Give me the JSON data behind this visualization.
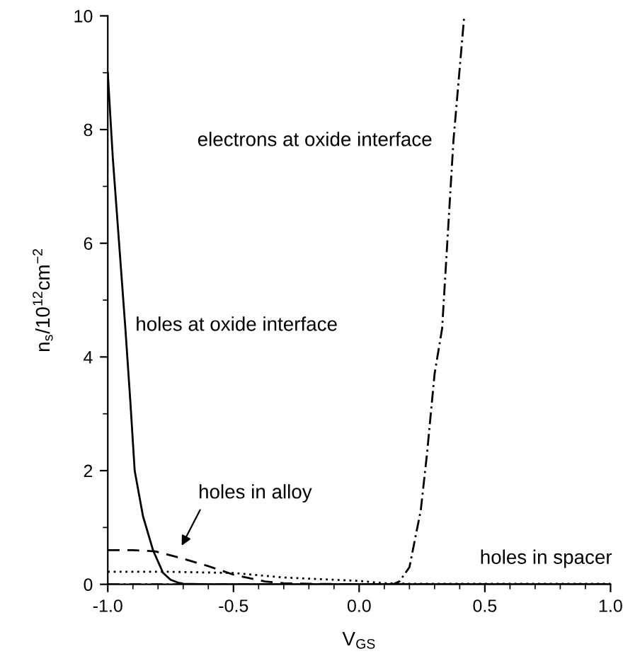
{
  "chart_data": {
    "type": "line",
    "xlabel": "V$_{GS}$",
    "ylabel": "n$_{s}$/10$^{12}$cm$^{−2}$",
    "xlim": [
      -1.0,
      1.0
    ],
    "ylim": [
      0,
      10
    ],
    "xticks": [
      {
        "value": -1.0,
        "label": "-1.0"
      },
      {
        "value": -0.5,
        "label": "-0.5"
      },
      {
        "value": 0.0,
        "label": "0.0"
      },
      {
        "value": 0.5,
        "label": "0.5"
      },
      {
        "value": 1.0,
        "label": "1.0"
      }
    ],
    "yticks": [
      0,
      2,
      4,
      6,
      8,
      10
    ],
    "grid": false,
    "legend": false,
    "marker": "none",
    "series": [
      {
        "name": "holes at oxide interface",
        "color": "#000000",
        "line_style": "solid",
        "x": [
          -1.0,
          -0.98,
          -0.955,
          -0.93,
          -0.91,
          -0.893,
          -0.86,
          -0.82,
          -0.78,
          -0.75,
          -0.72,
          -0.7,
          -0.6,
          -0.4,
          0.0,
          0.5,
          1.0
        ],
        "values": [
          9.0,
          7.5,
          6.0,
          4.5,
          3.2,
          2.0,
          1.2,
          0.6,
          0.2,
          0.08,
          0.03,
          0.01,
          0.0,
          0.0,
          0.0,
          0.0,
          0.0
        ]
      },
      {
        "name": "holes in alloy",
        "color": "#000000",
        "line_style": "dashed",
        "x": [
          -1.0,
          -0.9,
          -0.81,
          -0.7,
          -0.6,
          -0.5,
          -0.375,
          -0.3,
          -0.2,
          0.0,
          0.5,
          1.0
        ],
        "values": [
          0.6,
          0.6,
          0.58,
          0.45,
          0.32,
          0.17,
          0.05,
          0.02,
          0.01,
          0.0,
          0.0,
          0.0
        ]
      },
      {
        "name": "holes in spacer",
        "color": "#000000",
        "line_style": "dotted",
        "x": [
          -1.0,
          -0.75,
          -0.5,
          -0.3,
          -0.1,
          0.0,
          0.1,
          0.2,
          0.5,
          1.0
        ],
        "values": [
          0.22,
          0.22,
          0.2,
          0.12,
          0.08,
          0.06,
          0.02,
          0.01,
          0.01,
          0.01
        ]
      },
      {
        "name": "electrons at oxide interface",
        "color": "#000000",
        "line_style": "dashdot",
        "x": [
          -1.0,
          0.0,
          0.1,
          0.14,
          0.16,
          0.2,
          0.245,
          0.27,
          0.3,
          0.33,
          0.375,
          0.418
        ],
        "values": [
          0.0,
          0.0,
          0.0,
          0.01,
          0.05,
          0.3,
          1.3,
          2.3,
          3.7,
          4.5,
          7.8,
          10.0
        ]
      }
    ]
  }
}
